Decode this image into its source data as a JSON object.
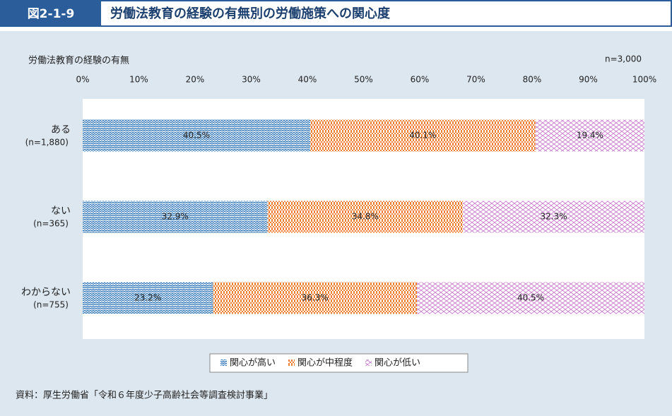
{
  "header": {
    "figure_number": "図2-1-9",
    "title": "労働法教育の経験の有無別の労働施策への関心度"
  },
  "chart_data": {
    "type": "stacked-bar-horizontal",
    "y_axis_title": "労働法教育の経験の有無",
    "sample_note": "n=3,000",
    "categories": [
      "ある",
      "ない",
      "わからない"
    ],
    "category_notes": [
      "(n=1,880)",
      "(n=365)",
      "(n=755)"
    ],
    "xlim": [
      0,
      100
    ],
    "xticks": [
      {
        "value": 0,
        "label": "0%"
      },
      {
        "value": 10,
        "label": "10%"
      },
      {
        "value": 20,
        "label": "20%"
      },
      {
        "value": 30,
        "label": "30%"
      },
      {
        "value": 40,
        "label": "40%"
      },
      {
        "value": 50,
        "label": "50%"
      },
      {
        "value": 60,
        "label": "60%"
      },
      {
        "value": 70,
        "label": "70%"
      },
      {
        "value": 80,
        "label": "80%"
      },
      {
        "value": 90,
        "label": "90%"
      },
      {
        "value": 100,
        "label": "100%"
      }
    ],
    "series": [
      {
        "name": "関心が高い",
        "color": "#2e75b6",
        "pattern": "zigzag",
        "values": [
          40.5,
          32.9,
          23.2
        ],
        "value_labels": [
          "40.5%",
          "32.9%",
          "23.2%"
        ]
      },
      {
        "name": "関心が中程度",
        "color": "#ed7d31",
        "pattern": "checker",
        "values": [
          40.1,
          34.8,
          36.3
        ],
        "value_labels": [
          "40.1%",
          "34.8%",
          "36.3%"
        ]
      },
      {
        "name": "関心が低い",
        "color": "#c97fcf",
        "pattern": "crosshatch",
        "values": [
          19.4,
          32.3,
          40.5
        ],
        "value_labels": [
          "19.4%",
          "32.3%",
          "40.5%"
        ]
      }
    ],
    "legend": "bottom",
    "source": "資料：厚生労働省「令和６年度少子高齢社会等調査検討事業」"
  }
}
